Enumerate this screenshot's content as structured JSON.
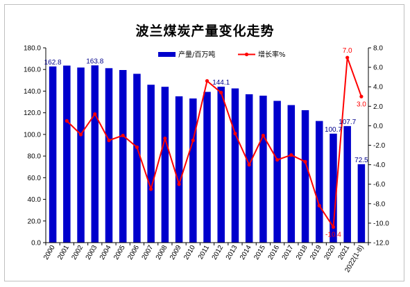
{
  "chart_data": {
    "type": "bar",
    "title": "波兰煤炭产量变化走势",
    "categories": [
      "2000",
      "2001",
      "2002",
      "2003",
      "2004",
      "2005",
      "2006",
      "2007",
      "2008",
      "2009",
      "2010",
      "2011",
      "2012",
      "2013",
      "2014",
      "2015",
      "2016",
      "2017",
      "2018",
      "2019",
      "2020",
      "2021",
      "2022(1-8)"
    ],
    "series": [
      {
        "name": "产量/百万吨",
        "type": "bar",
        "axis": "left",
        "color": "#0000cc",
        "values": [
          162.8,
          163.6,
          161.8,
          163.8,
          161.2,
          159.5,
          156.0,
          145.9,
          144.0,
          135.2,
          133.2,
          139.3,
          144.1,
          142.5,
          137.1,
          135.8,
          131.0,
          127.1,
          122.4,
          112.4,
          100.7,
          107.7,
          72.5
        ],
        "labeled": {
          "0": "162.8",
          "3": "163.8",
          "12": "144.1",
          "20": "100.7",
          "21": "107.7",
          "22": "72.5"
        }
      },
      {
        "name": "增长率%",
        "type": "line",
        "axis": "right",
        "color": "#ff0000",
        "values": [
          null,
          0.5,
          -0.9,
          1.2,
          -1.5,
          -1.0,
          -2.2,
          -6.5,
          -1.3,
          -6.0,
          -1.5,
          4.6,
          3.4,
          -0.8,
          -4.0,
          -1.0,
          -3.5,
          -3.0,
          -3.7,
          -8.2,
          -10.4,
          7.0,
          3.0
        ],
        "labeled": {
          "20": "-10.4",
          "21": "7.0",
          "22": "3.0"
        }
      }
    ],
    "ylim_left": [
      0,
      180
    ],
    "yticks_left": [
      "0.0",
      "20.0",
      "40.0",
      "60.0",
      "80.0",
      "100.0",
      "120.0",
      "140.0",
      "160.0",
      "180.0"
    ],
    "ylim_right": [
      -12,
      8
    ],
    "yticks_right": [
      "-12.0",
      "-10.0",
      "-8.0",
      "-6.0",
      "-4.0",
      "-2.0",
      "0.0",
      "2.0",
      "4.0",
      "6.0",
      "8.0"
    ],
    "grid": false,
    "legend_position": "top-center"
  }
}
